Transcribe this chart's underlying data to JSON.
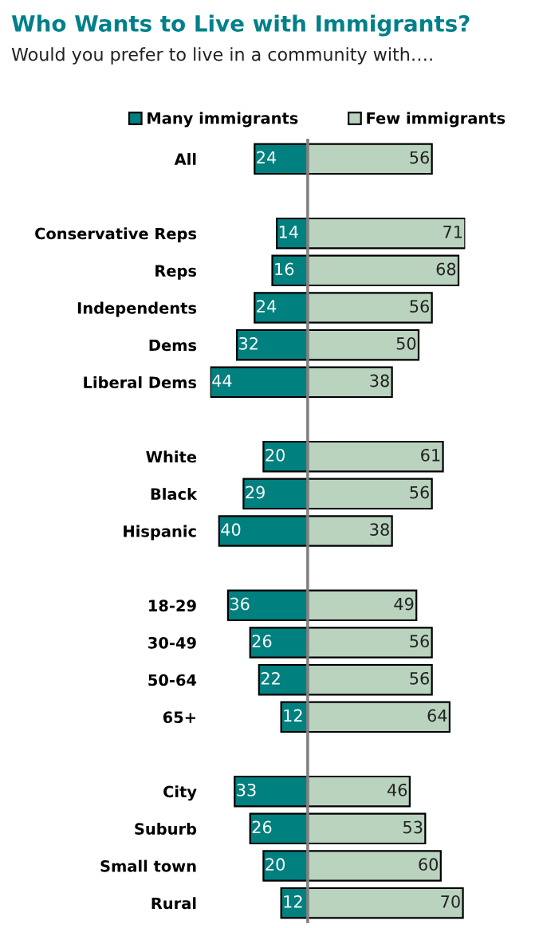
{
  "chart_data": [
    {
      "type": "bar",
      "orientation": "horizontal",
      "title": "Who Wants to Live with Immigrants?",
      "subtitle": "Would you prefer to live in a community with….",
      "categories": [
        "All",
        null,
        "Conservative Reps",
        "Reps",
        "Independents",
        "Dems",
        "Liberal Dems",
        null,
        "White",
        "Black",
        "Hispanic",
        null,
        "18-29",
        "30-49",
        "50-64",
        "65+",
        null,
        "City",
        "Suburb",
        "Small town",
        "Rural"
      ],
      "series": [
        {
          "name": "Many immigrants",
          "color": "#00807e",
          "values": [
            24,
            null,
            14,
            16,
            24,
            32,
            44,
            null,
            20,
            29,
            40,
            null,
            36,
            26,
            22,
            12,
            null,
            33,
            26,
            20,
            12
          ]
        }
      ],
      "xlim": [
        44,
        0
      ],
      "tick_labels": "y",
      "data_labels": true,
      "legend": "top"
    },
    {
      "type": "bar",
      "orientation": "horizontal",
      "categories": [
        null,
        null,
        null,
        null,
        null,
        null,
        null,
        null,
        null,
        null,
        null,
        null,
        null,
        null,
        null,
        null,
        null,
        null,
        null,
        null,
        null
      ],
      "series": [
        {
          "name": "Few immigrants",
          "color": "#b9d3bf",
          "values": [
            56,
            null,
            71,
            68,
            56,
            50,
            38,
            null,
            61,
            56,
            38,
            null,
            49,
            56,
            56,
            64,
            null,
            46,
            53,
            60,
            70
          ]
        }
      ],
      "xlim": [
        0,
        71
      ],
      "data_labels": true,
      "legend": "top"
    }
  ]
}
